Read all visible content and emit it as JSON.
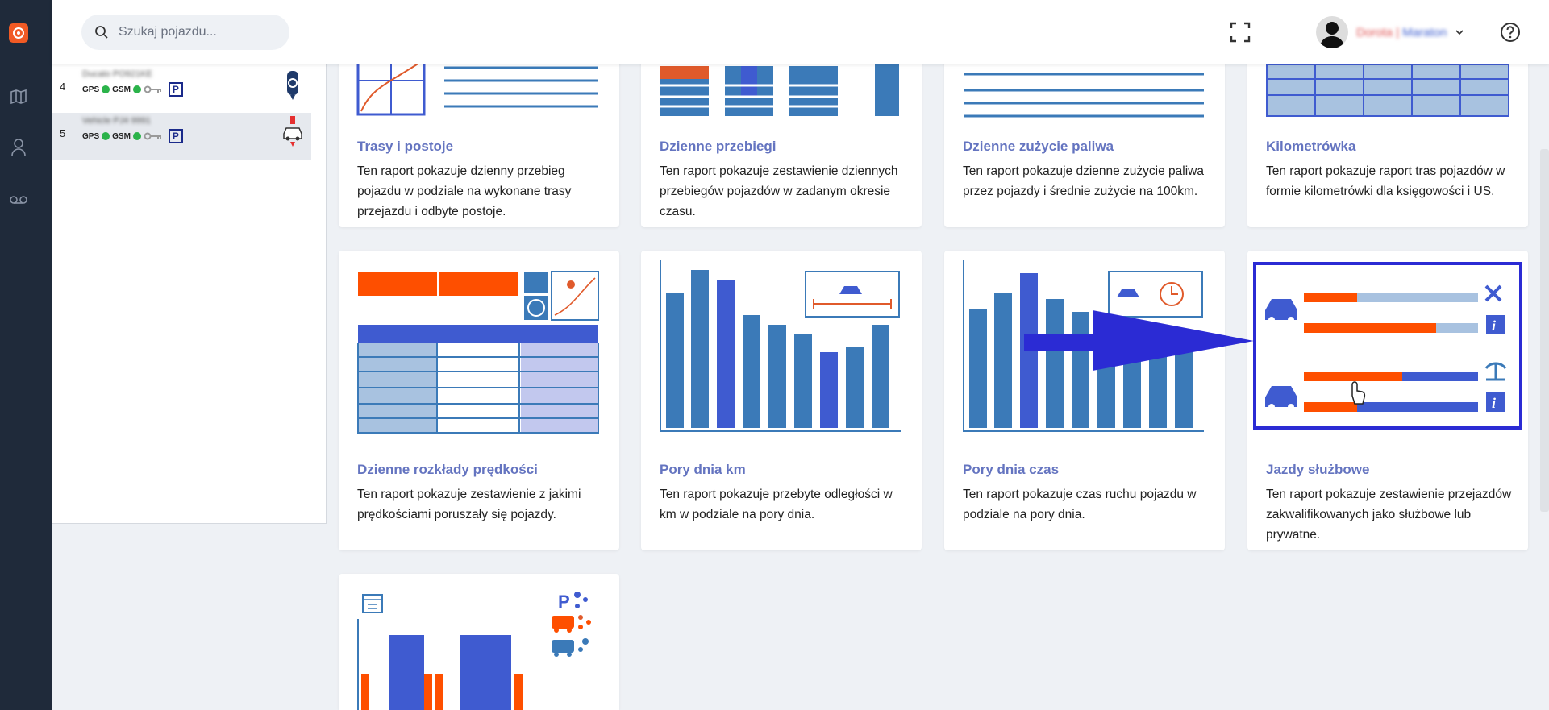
{
  "search": {
    "placeholder": "Szukaj pojazdu..."
  },
  "user": {
    "name": "Dorota",
    "separator": " | ",
    "org": "Maraton"
  },
  "vehicles": [
    {
      "index": "4",
      "name": "Ducato PO921KE",
      "gps": "GPS",
      "gsm": "GSM",
      "parking": "P"
    },
    {
      "index": "5",
      "name": "Vehicle PJ4 9991",
      "gps": "GPS",
      "gsm": "GSM",
      "parking": "P"
    }
  ],
  "reports": [
    {
      "title": "Trasy i postoje",
      "desc": "Ten raport pokazuje dzienny przebieg pojazdu w podziale na wykonane trasy przejazdu i odbyte postoje."
    },
    {
      "title": "Dzienne przebiegi",
      "desc": "Ten raport pokazuje zestawienie dziennych przebiegów pojazdów w zadanym okresie czasu."
    },
    {
      "title": "Dzienne zużycie paliwa",
      "desc": "Ten raport pokazuje dzienne zużycie paliwa przez pojazdy i średnie zużycie na 100km."
    },
    {
      "title": "Kilometrówka",
      "desc": "Ten raport pokazuje raport tras pojazdów w formie kilometrówki dla księgowości i US."
    },
    {
      "title": "Dzienne rozkłady prędkości",
      "desc": "Ten raport pokazuje zestawienie z jakimi prędkościami poruszały się pojazdy."
    },
    {
      "title": "Pory dnia km",
      "desc": "Ten raport pokazuje przebyte odległości w km w podziale na pory dnia."
    },
    {
      "title": "Pory dnia czas",
      "desc": "Ten raport pokazuje czas ruchu pojazdu w podziale na pory dnia."
    },
    {
      "title": "Jazdy służbowe",
      "desc": "Ten raport pokazuje zestawienie przejazdów zakwalifikowanych jako służbowe lub prywatne."
    }
  ],
  "colors": {
    "accent": "#f15a24",
    "blue": "#3f5bd0",
    "steel": "#3b7ab8",
    "title": "#6474c0",
    "rail": "#1f2a3a"
  }
}
